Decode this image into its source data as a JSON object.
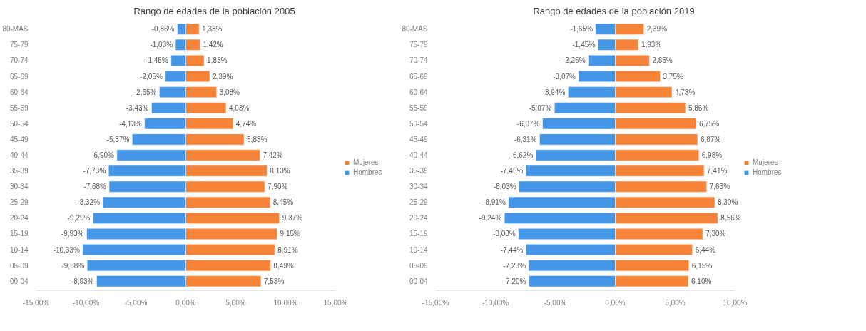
{
  "chart_data": [
    {
      "type": "bar",
      "orientation": "horizontal",
      "stacked": true,
      "title": "Rango de edades de la población 2005",
      "categories": [
        "80-MAS",
        "75-79",
        "70-74",
        "65-69",
        "60-64",
        "55-59",
        "50-54",
        "45-49",
        "40-44",
        "35-39",
        "30-34",
        "25-29",
        "20-24",
        "15-19",
        "10-14",
        "05-09",
        "00-04"
      ],
      "series": [
        {
          "name": "Mujeres",
          "color": "#f5843a",
          "values": [
            1.33,
            1.42,
            1.83,
            2.39,
            3.08,
            4.03,
            4.74,
            5.83,
            7.42,
            8.13,
            7.9,
            8.45,
            9.37,
            9.15,
            8.91,
            8.49,
            7.53
          ],
          "value_labels": [
            "1,33%",
            "1,42%",
            "1,83%",
            "2,39%",
            "3,08%",
            "4,03%",
            "4,74%",
            "5,83%",
            "7,42%",
            "8,13%",
            "7,90%",
            "8,45%",
            "9,37%",
            "9,15%",
            "8,91%",
            "8,49%",
            "7,53%"
          ]
        },
        {
          "name": "Hombres",
          "color": "#4596e6",
          "values": [
            -0.86,
            -1.03,
            -1.48,
            -2.05,
            -2.65,
            -3.43,
            -4.13,
            -5.37,
            -6.9,
            -7.73,
            -7.68,
            -8.32,
            -9.29,
            -9.93,
            -10.33,
            -9.88,
            -8.93
          ],
          "value_labels": [
            "-0,86%",
            "-1,03%",
            "-1,48%",
            "-2,05%",
            "-2,65%",
            "-3,43%",
            "-4,13%",
            "-5,37%",
            "-6,90%",
            "-7,73%",
            "-7,68%",
            "-8,32%",
            "-9,29%",
            "-9,93%",
            "-10,33%",
            "-9,88%",
            "-8,93%"
          ]
        }
      ],
      "xlim": [
        -15,
        15
      ],
      "xticks": [
        {
          "value": -15,
          "label": "-15,00%"
        },
        {
          "value": -10,
          "label": "-10,00%"
        },
        {
          "value": -5,
          "label": "-5,00%"
        },
        {
          "value": 0,
          "label": "0,00%"
        },
        {
          "value": 5,
          "label": "5,00%"
        },
        {
          "value": 10,
          "label": "10.00%"
        },
        {
          "value": 15,
          "label": "15,00%"
        }
      ],
      "legend": "right",
      "grid": false
    },
    {
      "type": "bar",
      "orientation": "horizontal",
      "stacked": true,
      "title": "Rango de edades de la población 2019",
      "categories": [
        "80-MAS",
        "75-79",
        "70-74",
        "65-69",
        "60-64",
        "55-59",
        "50-54",
        "45-49",
        "40-44",
        "35-39",
        "30-34",
        "25-29",
        "20-24",
        "15-19",
        "10-14",
        "05-09",
        "00-04"
      ],
      "series": [
        {
          "name": "Mujeres",
          "color": "#f5843a",
          "values": [
            2.39,
            1.93,
            2.85,
            3.75,
            4.73,
            5.86,
            6.75,
            6.87,
            6.98,
            7.41,
            7.63,
            8.3,
            8.56,
            7.3,
            6.44,
            6.15,
            6.1
          ],
          "value_labels": [
            "2,39%",
            "1,93%",
            "2,85%",
            "3,75%",
            "4,73%",
            "5,86%",
            "6,75%",
            "6,87%",
            "6,98%",
            "7,41%",
            "7,63%",
            "8,30%",
            "8,56%",
            "7,30%",
            "6,44%",
            "6,15%",
            "6,10%"
          ]
        },
        {
          "name": "Hombres",
          "color": "#4596e6",
          "values": [
            -1.65,
            -1.45,
            -2.26,
            -3.07,
            -3.94,
            -5.07,
            -6.07,
            -6.31,
            -6.62,
            -7.45,
            -8.03,
            -8.91,
            -9.24,
            -8.08,
            -7.44,
            -7.23,
            -7.2
          ],
          "value_labels": [
            "-1,65%",
            "-1,45%",
            "-2,26%",
            "-3,07%",
            "-3,94%",
            "-5,07%",
            "-6,07%",
            "-6,31%",
            "-6,62%",
            "-7,45%",
            "-8,03%",
            "-8,91%",
            "-9,24%",
            "-8,08%",
            "-7,44%",
            "-7,23%",
            "-7,20%"
          ]
        }
      ],
      "xlim": [
        -15,
        10
      ],
      "xticks": [
        {
          "value": -15,
          "label": "-15,00%"
        },
        {
          "value": -10,
          "label": "-10,00%"
        },
        {
          "value": -5,
          "label": "-5,00%"
        },
        {
          "value": 0,
          "label": "0,00%"
        },
        {
          "value": 5,
          "label": "5,00%"
        },
        {
          "value": 10,
          "label": "10,00%"
        }
      ],
      "legend": "right",
      "grid": false
    }
  ]
}
